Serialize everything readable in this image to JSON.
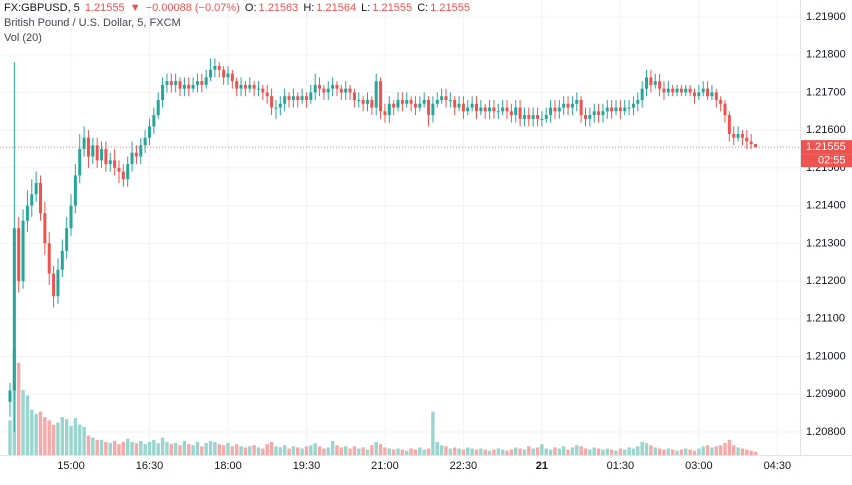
{
  "header": {
    "symbol": "FX:GBPUSD, 5",
    "last": "1.21555",
    "arrow": "▼",
    "change": "−0.00088 (−0.07%)",
    "ohlc": [
      {
        "label": "O:",
        "value": "1.21563"
      },
      {
        "label": "H:",
        "value": "1.21564"
      },
      {
        "label": "L:",
        "value": "1.21555"
      },
      {
        "label": "C:",
        "value": "1.21555"
      }
    ],
    "description": "British Pound / U.S. Dollar, 5, FXCM",
    "indicator": "Vol (20)"
  },
  "chart_data": {
    "type": "candlestick",
    "open": [
      1.2088,
      1.2091,
      1.2134,
      1.212,
      1.2136,
      1.214,
      1.2143,
      1.2146,
      1.2138,
      1.213,
      1.2122,
      1.2116,
      1.2123,
      1.2128,
      1.2134,
      1.214,
      1.2148,
      1.2155,
      1.2158,
      1.2153,
      1.2156,
      1.2152,
      1.2155,
      1.2151,
      1.2152,
      1.215,
      1.2149,
      1.2147,
      1.2151,
      1.2154,
      1.2153,
      1.2156,
      1.2158,
      1.2161,
      1.2164,
      1.2168,
      1.2172,
      1.2173,
      1.2172,
      1.2173,
      1.2171,
      1.2172,
      1.2171,
      1.2172,
      1.2173,
      1.2172,
      1.2174,
      1.2176,
      1.2177,
      1.2176,
      1.2174,
      1.2175,
      1.2173,
      1.2171,
      1.2172,
      1.2171,
      1.2172,
      1.2171,
      1.2171,
      1.217,
      1.2169,
      1.2166,
      1.2166,
      1.2167,
      1.2169,
      1.2168,
      1.2169,
      1.2168,
      1.2169,
      1.2168,
      1.217,
      1.2172,
      1.2171,
      1.217,
      1.2171,
      1.2172,
      1.2171,
      1.217,
      1.2171,
      1.217,
      1.2168,
      1.2168,
      1.2167,
      1.2168,
      1.2166,
      1.2173,
      1.2165,
      1.2164,
      1.2167,
      1.2166,
      1.2168,
      1.2167,
      1.2168,
      1.2167,
      1.2166,
      1.2167,
      1.2168,
      1.2164,
      1.2167,
      1.2168,
      1.2169,
      1.2168,
      1.2168,
      1.2166,
      1.2167,
      1.2165,
      1.2166,
      1.2167,
      1.2165,
      1.2166,
      1.2165,
      1.2166,
      1.2165,
      1.2165,
      1.2166,
      1.2165,
      1.2164,
      1.2166,
      1.2163,
      1.2164,
      1.2163,
      1.2164,
      1.2163,
      1.2163,
      1.2164,
      1.2166,
      1.2165,
      1.2166,
      1.2167,
      1.2166,
      1.2167,
      1.2168,
      1.2164,
      1.2163,
      1.2164,
      1.2165,
      1.2164,
      1.2165,
      1.2166,
      1.2165,
      1.2166,
      1.2165,
      1.2166,
      1.2166,
      1.2167,
      1.2168,
      1.2171,
      1.2174,
      1.2172,
      1.2173,
      1.2171,
      1.217,
      1.2171,
      1.217,
      1.2171,
      1.217,
      1.2171,
      1.217,
      1.2169,
      1.217,
      1.2171,
      1.2169,
      1.217,
      1.2168,
      1.2167,
      1.2164,
      1.2159,
      1.2158,
      1.2159,
      1.2158,
      1.2157,
      1.21563
    ],
    "high": [
      1.2093,
      1.2178,
      1.2137,
      1.2139,
      1.2144,
      1.2147,
      1.2149,
      1.2148,
      1.2141,
      1.2133,
      1.2124,
      1.2126,
      1.2131,
      1.2137,
      1.2143,
      1.2151,
      1.2159,
      1.2161,
      1.216,
      1.2158,
      1.2158,
      1.2157,
      1.2157,
      1.2154,
      1.2155,
      1.2152,
      1.2151,
      1.2153,
      1.2157,
      1.2156,
      1.2158,
      1.216,
      1.2163,
      1.2166,
      1.217,
      1.2174,
      1.2175,
      1.2175,
      1.2175,
      1.2174,
      1.2174,
      1.2174,
      1.2174,
      1.2175,
      1.2175,
      1.2176,
      1.2179,
      1.2179,
      1.2178,
      1.2177,
      1.2177,
      1.2176,
      1.2174,
      1.2174,
      1.2173,
      1.2174,
      1.2173,
      1.2173,
      1.2172,
      1.2172,
      1.2171,
      1.2168,
      1.2169,
      1.2171,
      1.217,
      1.2171,
      1.217,
      1.2171,
      1.217,
      1.2172,
      1.2175,
      1.2174,
      1.2172,
      1.2173,
      1.2174,
      1.2173,
      1.2172,
      1.2173,
      1.2172,
      1.2171,
      1.217,
      1.2169,
      1.217,
      1.2169,
      1.2175,
      1.2174,
      1.2167,
      1.2169,
      1.2168,
      1.217,
      1.217,
      1.217,
      1.2169,
      1.2169,
      1.2169,
      1.217,
      1.2169,
      1.2169,
      1.217,
      1.2171,
      1.2171,
      1.217,
      1.2169,
      1.2169,
      1.2169,
      1.2168,
      1.2169,
      1.2169,
      1.2168,
      1.2167,
      1.2168,
      1.2168,
      1.2167,
      1.2168,
      1.2168,
      1.2167,
      1.2168,
      1.2168,
      1.2166,
      1.2166,
      1.2166,
      1.2166,
      1.2165,
      1.2166,
      1.2168,
      1.2168,
      1.2168,
      1.2169,
      1.2169,
      1.2169,
      1.217,
      1.2169,
      1.2166,
      1.2166,
      1.2167,
      1.2167,
      1.2167,
      1.2168,
      1.2168,
      1.2168,
      1.2168,
      1.2168,
      1.2168,
      1.2169,
      1.217,
      1.2173,
      1.2176,
      1.2176,
      1.2175,
      1.2175,
      1.2173,
      1.2173,
      1.2172,
      1.2172,
      1.2172,
      1.2172,
      1.2172,
      1.2171,
      1.2172,
      1.2173,
      1.2173,
      1.2172,
      1.2171,
      1.2169,
      1.2168,
      1.2165,
      1.2161,
      1.2161,
      1.216,
      1.216,
      1.2159,
      1.21564
    ],
    "low": [
      1.2084,
      1.208,
      1.2117,
      1.2118,
      1.2133,
      1.2137,
      1.2141,
      1.2136,
      1.2127,
      1.2119,
      1.2113,
      1.2114,
      1.2121,
      1.2126,
      1.2132,
      1.2138,
      1.2146,
      1.2153,
      1.215,
      1.2151,
      1.215,
      1.215,
      1.2149,
      1.2149,
      1.2148,
      1.2146,
      1.2145,
      1.2145,
      1.2149,
      1.2151,
      1.2151,
      1.2154,
      1.2156,
      1.2159,
      1.2163,
      1.2166,
      1.217,
      1.217,
      1.217,
      1.2169,
      1.2169,
      1.2169,
      1.217,
      1.217,
      1.217,
      1.2171,
      1.2173,
      1.2174,
      1.2174,
      1.2172,
      1.2172,
      1.2171,
      1.2169,
      1.2169,
      1.2169,
      1.217,
      1.2169,
      1.2169,
      1.2168,
      1.2167,
      1.2164,
      1.2163,
      1.2164,
      1.2165,
      1.2166,
      1.2166,
      1.2166,
      1.2167,
      1.2166,
      1.2167,
      1.2168,
      1.2169,
      1.2168,
      1.2168,
      1.2169,
      1.2169,
      1.2168,
      1.2168,
      1.2168,
      1.2166,
      1.2166,
      1.2165,
      1.2165,
      1.2164,
      1.2164,
      1.2163,
      1.2162,
      1.2162,
      1.2164,
      1.2165,
      1.2165,
      1.2166,
      1.2165,
      1.2164,
      1.2165,
      1.2166,
      1.2161,
      1.2162,
      1.2166,
      1.2167,
      1.2166,
      1.2166,
      1.2164,
      1.2165,
      1.2163,
      1.2164,
      1.2165,
      1.2163,
      1.2164,
      1.2163,
      1.2163,
      1.2163,
      1.2163,
      1.2164,
      1.2163,
      1.2162,
      1.2162,
      1.2161,
      1.2161,
      1.2161,
      1.2161,
      1.2161,
      1.2161,
      1.2162,
      1.2162,
      1.2163,
      1.2163,
      1.2164,
      1.2164,
      1.2164,
      1.2165,
      1.2162,
      1.2161,
      1.2161,
      1.2162,
      1.2162,
      1.2162,
      1.2163,
      1.2163,
      1.2164,
      1.2163,
      1.2164,
      1.2164,
      1.2164,
      1.2165,
      1.2166,
      1.2169,
      1.217,
      1.2171,
      1.2169,
      1.2168,
      1.2169,
      1.2169,
      1.2169,
      1.2169,
      1.2169,
      1.2169,
      1.2167,
      1.2168,
      1.2169,
      1.2168,
      1.2168,
      1.2166,
      1.2165,
      1.2162,
      1.2157,
      1.2156,
      1.2157,
      1.2156,
      1.2155,
      1.2155,
      1.21555
    ],
    "close": [
      1.2091,
      1.2134,
      1.212,
      1.2136,
      1.214,
      1.2143,
      1.2146,
      1.2138,
      1.213,
      1.2122,
      1.2116,
      1.2123,
      1.2128,
      1.2134,
      1.214,
      1.2148,
      1.2155,
      1.2158,
      1.2153,
      1.2156,
      1.2152,
      1.2155,
      1.2151,
      1.2152,
      1.215,
      1.2149,
      1.2147,
      1.2151,
      1.2154,
      1.2153,
      1.2156,
      1.2158,
      1.2161,
      1.2164,
      1.2168,
      1.2172,
      1.2173,
      1.2172,
      1.2173,
      1.2171,
      1.2172,
      1.2171,
      1.2172,
      1.2173,
      1.2172,
      1.2174,
      1.2176,
      1.2177,
      1.2176,
      1.2174,
      1.2175,
      1.2173,
      1.2171,
      1.2172,
      1.2171,
      1.2172,
      1.2171,
      1.2171,
      1.217,
      1.2169,
      1.2166,
      1.2166,
      1.2167,
      1.2169,
      1.2168,
      1.2169,
      1.2168,
      1.2169,
      1.2168,
      1.217,
      1.2172,
      1.2171,
      1.217,
      1.2171,
      1.2172,
      1.2171,
      1.217,
      1.2171,
      1.217,
      1.2168,
      1.2168,
      1.2167,
      1.2168,
      1.2166,
      1.2173,
      1.2165,
      1.2164,
      1.2167,
      1.2166,
      1.2168,
      1.2167,
      1.2168,
      1.2167,
      1.2166,
      1.2167,
      1.2168,
      1.2164,
      1.2167,
      1.2168,
      1.2169,
      1.2168,
      1.2168,
      1.2166,
      1.2167,
      1.2165,
      1.2166,
      1.2167,
      1.2165,
      1.2166,
      1.2165,
      1.2166,
      1.2165,
      1.2165,
      1.2166,
      1.2165,
      1.2164,
      1.2166,
      1.2163,
      1.2164,
      1.2163,
      1.2164,
      1.2163,
      1.2163,
      1.2164,
      1.2166,
      1.2165,
      1.2166,
      1.2167,
      1.2166,
      1.2167,
      1.2168,
      1.2164,
      1.2163,
      1.2164,
      1.2165,
      1.2164,
      1.2165,
      1.2166,
      1.2165,
      1.2166,
      1.2165,
      1.2166,
      1.2166,
      1.2167,
      1.2168,
      1.2171,
      1.2174,
      1.2172,
      1.2173,
      1.2171,
      1.217,
      1.2171,
      1.217,
      1.2171,
      1.217,
      1.2171,
      1.217,
      1.2169,
      1.217,
      1.2171,
      1.2169,
      1.217,
      1.2168,
      1.2167,
      1.2164,
      1.2159,
      1.2158,
      1.2159,
      1.2158,
      1.2157,
      1.21563,
      1.21555
    ],
    "volume": [
      32,
      97,
      85,
      60,
      55,
      42,
      38,
      40,
      35,
      32,
      28,
      30,
      35,
      33,
      27,
      34,
      28,
      26,
      18,
      16,
      14,
      14,
      12,
      11,
      13,
      10,
      12,
      15,
      12,
      11,
      13,
      10,
      12,
      14,
      11,
      16,
      12,
      10,
      11,
      9,
      13,
      10,
      9,
      12,
      8,
      11,
      13,
      12,
      10,
      9,
      11,
      8,
      10,
      8,
      7,
      8,
      9,
      7,
      6,
      10,
      12,
      8,
      7,
      9,
      6,
      8,
      7,
      6,
      8,
      9,
      11,
      8,
      6,
      7,
      13,
      9,
      7,
      8,
      6,
      8,
      6,
      7,
      5,
      9,
      12,
      10,
      7,
      6,
      5,
      6,
      5,
      4,
      6,
      5,
      7,
      5,
      6,
      40,
      12,
      9,
      8,
      6,
      7,
      6,
      5,
      7,
      6,
      5,
      6,
      5,
      4,
      5,
      6,
      5,
      4,
      5,
      7,
      6,
      5,
      8,
      6,
      7,
      10,
      6,
      5,
      7,
      6,
      8,
      5,
      7,
      9,
      8,
      6,
      5,
      7,
      6,
      5,
      6,
      5,
      4,
      6,
      5,
      7,
      6,
      8,
      12,
      11,
      9,
      7,
      6,
      5,
      6,
      5,
      4,
      5,
      6,
      5,
      4,
      6,
      8,
      9,
      7,
      8,
      9,
      11,
      14,
      9,
      7,
      6,
      5,
      4,
      3
    ],
    "up_color": "#26a69a",
    "down_color": "#ef5350",
    "up_volume_color": "#9ad5cf",
    "down_volume_color": "#f6a9a7",
    "xlim": [
      -2.29,
      181.2
    ],
    "xticks": [
      {
        "value": 14,
        "label": "15:00"
      },
      {
        "value": 32,
        "label": "16:30"
      },
      {
        "value": 50,
        "label": "18:00"
      },
      {
        "value": 68,
        "label": "19:30"
      },
      {
        "value": 86,
        "label": "21:00"
      },
      {
        "value": 104,
        "label": "22:30"
      },
      {
        "value": 122,
        "label": "21"
      },
      {
        "value": 140,
        "label": "01:30"
      },
      {
        "value": 158,
        "label": "03:00"
      },
      {
        "value": 176,
        "label": "04:30"
      }
    ],
    "ylim": [
      1.20739,
      1.21945
    ],
    "yticks": [
      {
        "value": 1.208,
        "label": "1.20800"
      },
      {
        "value": 1.209,
        "label": "1.20900"
      },
      {
        "value": 1.21,
        "label": "1.21000"
      },
      {
        "value": 1.211,
        "label": "1.21100"
      },
      {
        "value": 1.212,
        "label": "1.21200"
      },
      {
        "value": 1.213,
        "label": "1.21300"
      },
      {
        "value": 1.214,
        "label": "1.21400"
      },
      {
        "value": 1.215,
        "label": "1.21500"
      },
      {
        "value": 1.216,
        "label": "1.21600"
      },
      {
        "value": 1.217,
        "label": "1.21700"
      },
      {
        "value": 1.218,
        "label": "1.21800"
      },
      {
        "value": 1.219,
        "label": "1.21900"
      }
    ],
    "y2lim": [
      0,
      420
    ],
    "grid": true,
    "last_price": {
      "value": 1.21555,
      "label": "1.21555"
    },
    "countdown": "02:55"
  }
}
